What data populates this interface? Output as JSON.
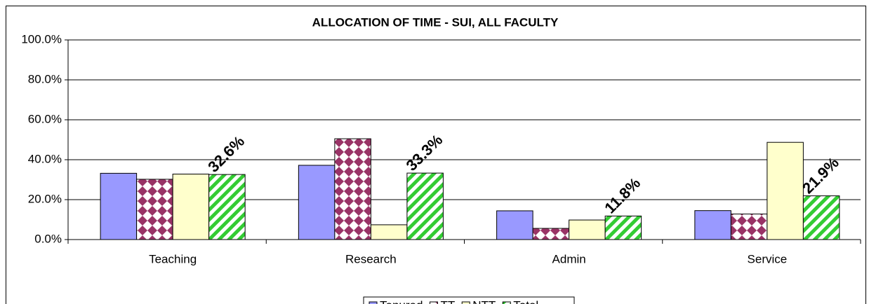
{
  "chart_data": {
    "type": "bar",
    "title": "ALLOCATION OF TIME - SUI, ALL FACULTY",
    "categories": [
      "Teaching",
      "Research",
      "Admin",
      "Service"
    ],
    "series": [
      {
        "name": "Tenured",
        "color": "#9999ff",
        "values": [
          33.2,
          37.2,
          14.4,
          14.5
        ]
      },
      {
        "name": "TT",
        "color": "#993366",
        "pattern": "diamond",
        "values": [
          30.2,
          50.5,
          5.6,
          12.8
        ]
      },
      {
        "name": "NTT",
        "color": "#ffffcc",
        "values": [
          32.8,
          7.4,
          9.8,
          48.7
        ]
      },
      {
        "name": "Total",
        "color": "#33cc33",
        "pattern": "stripes",
        "values": [
          32.6,
          33.3,
          11.8,
          21.9
        ],
        "value_labels": [
          "32.6%",
          "33.3%",
          "11.8%",
          "21.9%"
        ]
      }
    ],
    "ylim": [
      0,
      100
    ],
    "yticks": [
      {
        "value": 0,
        "label": "0.0%"
      },
      {
        "value": 20,
        "label": "20.0%"
      },
      {
        "value": 40,
        "label": "40.0%"
      },
      {
        "value": 60,
        "label": "60.0%"
      },
      {
        "value": 80,
        "label": "80.0%"
      },
      {
        "value": 100,
        "label": "100.0%"
      }
    ],
    "grid": true,
    "legend": "bottom"
  }
}
